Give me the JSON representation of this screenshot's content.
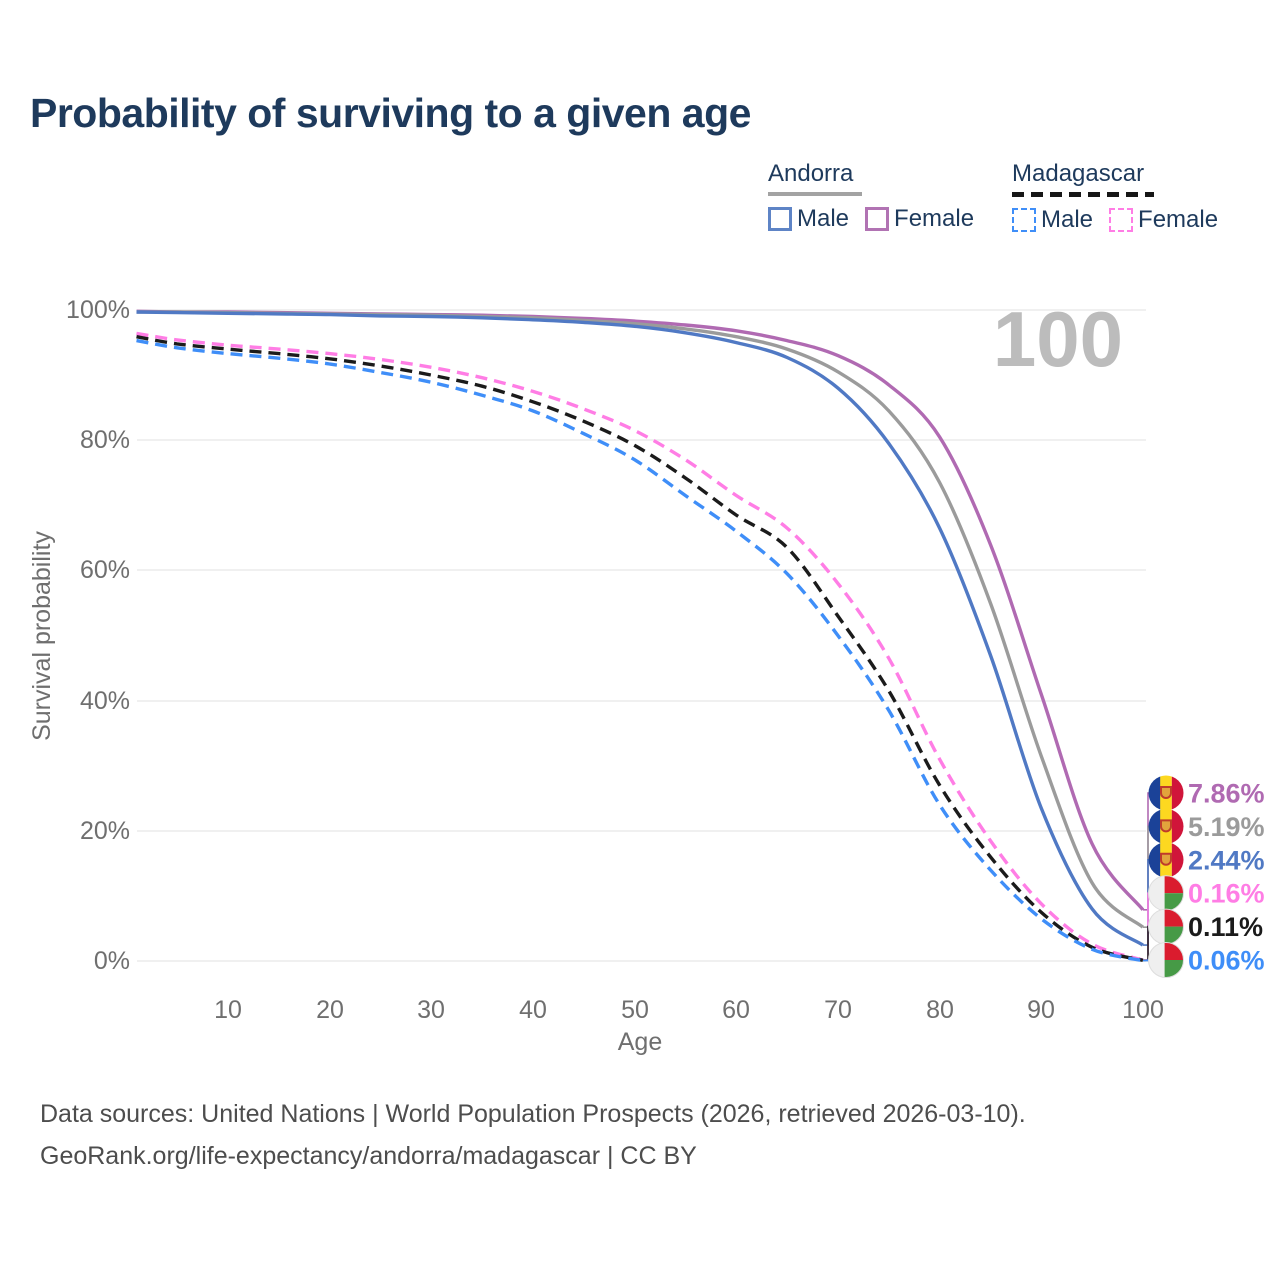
{
  "title": "Probability of surviving to a given age",
  "watermark_age": "100",
  "legend": {
    "groups": [
      {
        "country": "Andorra",
        "line_style": "solid",
        "items": [
          {
            "label": "Male",
            "color": "#5e84c6"
          },
          {
            "label": "Female",
            "color": "#b173b3"
          }
        ]
      },
      {
        "country": "Madagascar",
        "line_style": "dashed",
        "items": [
          {
            "label": "Male",
            "color": "#3f8ef8"
          },
          {
            "label": "Female",
            "color": "#ff7de5"
          }
        ]
      }
    ]
  },
  "flags": {
    "andorra": {
      "blue": "#1b4298",
      "yellow": "#fdd820",
      "red": "#d0153a",
      "crest": "#e2a33c",
      "crest_border": "#bf3b2b"
    },
    "madagascar": {
      "white": "#efefef",
      "red": "#da1c2e",
      "green": "#469a46",
      "ring": "#dddddd"
    }
  },
  "chart_data": {
    "type": "line",
    "title": "Probability of surviving to a given age",
    "xlabel": "Age",
    "ylabel": "Survival probability",
    "xlim": [
      1,
      100
    ],
    "ylim": [
      0,
      100
    ],
    "grid": "horizontal",
    "legend_position": "top-right",
    "x_ticks": [
      10,
      20,
      30,
      40,
      50,
      60,
      70,
      80,
      90,
      100
    ],
    "y_ticks": [
      "0%",
      "20%",
      "40%",
      "60%",
      "80%",
      "100%"
    ],
    "x": [
      1,
      5,
      10,
      15,
      20,
      25,
      30,
      35,
      40,
      45,
      50,
      55,
      60,
      65,
      70,
      75,
      80,
      85,
      90,
      95,
      100
    ],
    "series": [
      {
        "id": "andorra-female",
        "country": "Andorra",
        "group_label": "Female",
        "color": "#b06ab2",
        "dash": false,
        "flag": "andorra",
        "end_label": "7.86%",
        "values": [
          99.8,
          99.7,
          99.7,
          99.6,
          99.5,
          99.4,
          99.3,
          99.2,
          99.0,
          98.7,
          98.3,
          97.7,
          96.8,
          95.3,
          93.0,
          88.5,
          80.5,
          64.0,
          41.0,
          18.0,
          7.86
        ]
      },
      {
        "id": "andorra-combined",
        "country": "Andorra",
        "group_label": "",
        "color": "#9b9b9b",
        "dash": false,
        "flag": "andorra",
        "end_label": "5.19%",
        "values": [
          99.7,
          99.7,
          99.6,
          99.5,
          99.4,
          99.3,
          99.2,
          99.0,
          98.8,
          98.4,
          97.9,
          97.1,
          95.9,
          94.0,
          90.5,
          84.5,
          73.5,
          55.0,
          31.5,
          12.0,
          5.19
        ]
      },
      {
        "id": "andorra-male",
        "country": "Andorra",
        "group_label": "Male",
        "color": "#5079c4",
        "dash": false,
        "flag": "andorra",
        "end_label": "2.44%",
        "values": [
          99.7,
          99.6,
          99.5,
          99.4,
          99.3,
          99.1,
          99.0,
          98.8,
          98.5,
          98.1,
          97.5,
          96.5,
          95.0,
          92.7,
          88.0,
          79.5,
          66.5,
          47.0,
          23.5,
          8.0,
          2.44
        ]
      },
      {
        "id": "madagascar-female",
        "country": "Madagascar",
        "group_label": "Female",
        "color": "#ff7de5",
        "dash": true,
        "flag": "madagascar",
        "end_label": "0.16%",
        "values": [
          96.4,
          95.4,
          94.6,
          94.0,
          93.3,
          92.4,
          91.2,
          89.6,
          87.5,
          84.8,
          81.5,
          77.0,
          71.5,
          66.5,
          58.0,
          46.5,
          31.0,
          18.5,
          8.8,
          2.6,
          0.16
        ]
      },
      {
        "id": "madagascar-combined",
        "country": "Madagascar",
        "group_label": "",
        "color": "#1b1b1b",
        "dash": true,
        "flag": "madagascar",
        "end_label": "0.11%",
        "values": [
          95.9,
          94.8,
          94.0,
          93.3,
          92.5,
          91.4,
          90.0,
          88.3,
          85.9,
          82.9,
          79.2,
          74.2,
          68.5,
          63.5,
          53.0,
          41.5,
          27.0,
          16.0,
          7.5,
          2.1,
          0.11
        ]
      },
      {
        "id": "madagascar-male",
        "country": "Madagascar",
        "group_label": "Male",
        "color": "#3f8ef8",
        "dash": true,
        "flag": "madagascar",
        "end_label": "0.06%",
        "values": [
          95.3,
          94.2,
          93.3,
          92.6,
          91.7,
          90.4,
          88.9,
          86.9,
          84.5,
          81.0,
          77.0,
          71.5,
          66.0,
          59.5,
          50.0,
          38.5,
          24.0,
          14.0,
          6.5,
          1.8,
          0.06
        ]
      }
    ]
  },
  "footer": {
    "line1": "Data sources: United Nations | World Population Prospects (2026, retrieved 2026-03-10).",
    "line2": "GeoRank.org/life-expectancy/andorra/madagascar | CC BY"
  }
}
